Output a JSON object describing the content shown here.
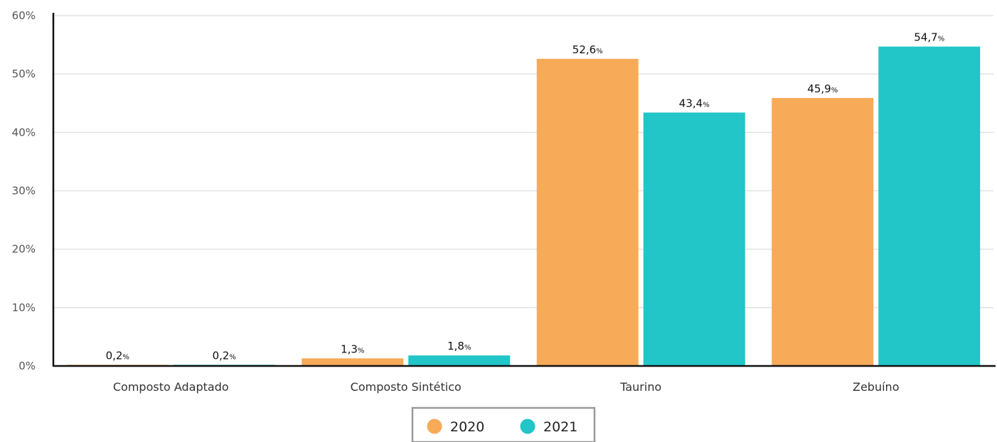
{
  "chart_data": {
    "type": "bar",
    "categories": [
      "Composto Adaptado",
      "Composto Sintético",
      "Taurino",
      "Zebuíno"
    ],
    "series": [
      {
        "name": "2020",
        "color": "#f7aa58",
        "values": [
          0.2,
          1.3,
          52.6,
          45.9
        ],
        "labels": [
          "0,2",
          "1,3",
          "52,6",
          "45,9"
        ]
      },
      {
        "name": "2021",
        "color": "#22c5c8",
        "values": [
          0.2,
          1.8,
          43.4,
          54.7
        ],
        "labels": [
          "0,2",
          "1,8",
          "43,4",
          "54,7"
        ]
      }
    ],
    "label_unit": "%",
    "ylim": [
      0,
      60
    ],
    "yticks": [
      "0%",
      "10%",
      "20%",
      "30%",
      "40%",
      "50%",
      "60%"
    ],
    "grid": true,
    "legend_position": "bottom-center"
  }
}
